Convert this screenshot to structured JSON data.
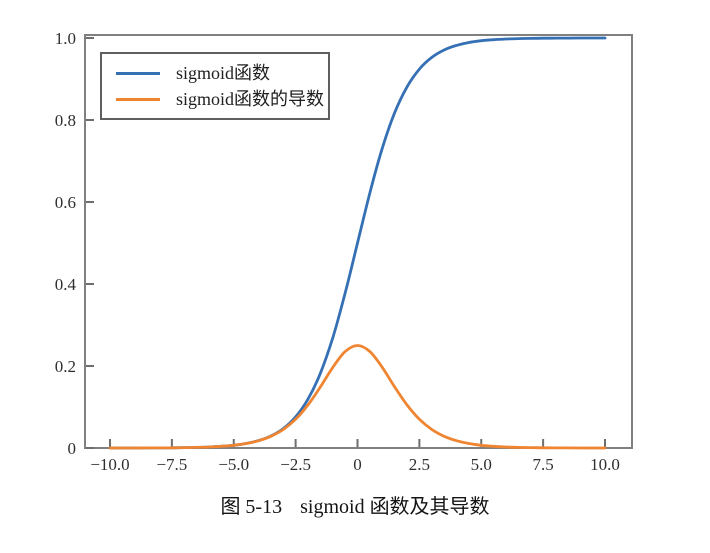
{
  "figure": {
    "caption_label": "图 5-13",
    "caption_title": "sigmoid 函数及其导数"
  },
  "colors": {
    "sigmoid_line": "#3570b4",
    "derivative_line": "#f08531",
    "spine": "#808080",
    "tick": "#6e6e6e",
    "tick_label": "#2f2f2f"
  },
  "chart_data": {
    "type": "line",
    "title": "",
    "xlabel": "",
    "ylabel": "",
    "xlim": [
      -10,
      10
    ],
    "ylim": [
      0,
      1.0
    ],
    "grid": false,
    "legend_position": "upper-left",
    "x_ticks": [
      "−10.0",
      "−7.5",
      "−5.0",
      "−2.5",
      "0",
      "2.5",
      "5.0",
      "7.5",
      "10.0"
    ],
    "x_tick_values": [
      -10,
      -7.5,
      -5,
      -2.5,
      0,
      2.5,
      5,
      7.5,
      10
    ],
    "y_ticks": [
      "1.0",
      "0.8",
      "0.6",
      "0.4",
      "0.2",
      "0"
    ],
    "y_tick_values": [
      1.0,
      0.8,
      0.6,
      0.4,
      0.2,
      0
    ],
    "x": [
      -10,
      -9.5,
      -9,
      -8.5,
      -8,
      -7.5,
      -7,
      -6.5,
      -6,
      -5.5,
      -5,
      -4.5,
      -4,
      -3.5,
      -3,
      -2.5,
      -2,
      -1.5,
      -1,
      -0.5,
      0,
      0.5,
      1,
      1.5,
      2,
      2.5,
      3,
      3.5,
      4,
      4.5,
      5,
      5.5,
      6,
      6.5,
      7,
      7.5,
      8,
      8.5,
      9,
      9.5,
      10
    ],
    "series": [
      {
        "name": "sigmoid函数",
        "color": "#3570b4",
        "values": [
          0.0,
          0.0001,
          0.0001,
          0.0002,
          0.0003,
          0.0006,
          0.0009,
          0.0015,
          0.0025,
          0.0041,
          0.0067,
          0.011,
          0.018,
          0.0293,
          0.0474,
          0.0759,
          0.1192,
          0.1824,
          0.2689,
          0.3775,
          0.5,
          0.6225,
          0.7311,
          0.8176,
          0.8808,
          0.9241,
          0.9526,
          0.9707,
          0.982,
          0.989,
          0.9933,
          0.9959,
          0.9975,
          0.9985,
          0.9991,
          0.9994,
          0.9997,
          0.9998,
          0.9999,
          0.9999,
          0.9999
        ]
      },
      {
        "name": "sigmoid函数的导数",
        "color": "#f08531",
        "values": [
          0.0,
          0.0001,
          0.0001,
          0.0002,
          0.0003,
          0.0006,
          0.0009,
          0.0015,
          0.0025,
          0.0041,
          0.0066,
          0.0109,
          0.0177,
          0.0285,
          0.0452,
          0.0701,
          0.105,
          0.1491,
          0.1966,
          0.235,
          0.25,
          0.235,
          0.1966,
          0.1491,
          0.105,
          0.0701,
          0.0452,
          0.0285,
          0.0177,
          0.0109,
          0.0066,
          0.0041,
          0.0025,
          0.0015,
          0.0009,
          0.0006,
          0.0003,
          0.0002,
          0.0001,
          0.0001,
          0.0
        ]
      }
    ]
  }
}
